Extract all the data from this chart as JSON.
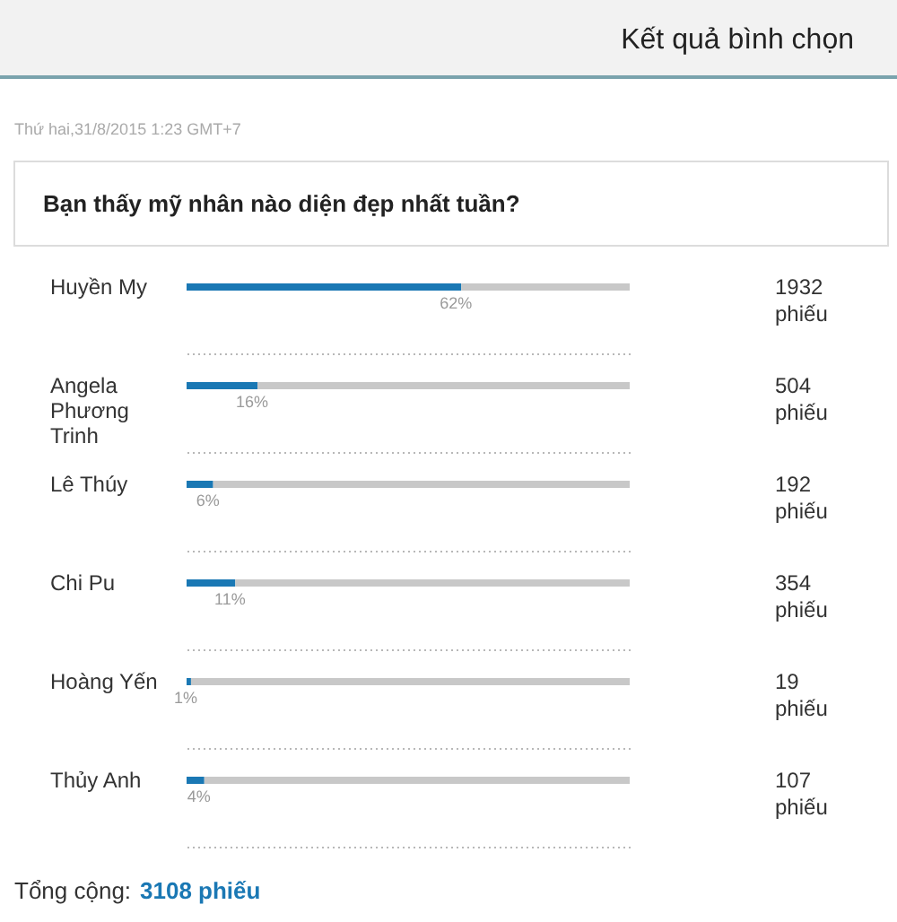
{
  "chart_data": {
    "type": "bar",
    "orientation": "horizontal",
    "stacked": true,
    "title": "Kết quả bình chọn",
    "subtitle": "Bạn thấy mỹ nhân nào diện đẹp nhất tuần?",
    "categories": [
      "Huyền My",
      "Angela Phương Trinh",
      "Lê Thúy",
      "Chi Pu",
      "Hoàng Yến",
      "Thủy Anh"
    ],
    "series": [
      {
        "color": "#1a78b4",
        "values": [
          62,
          16,
          6,
          11,
          1,
          4
        ],
        "value_labels": [
          "62%",
          "16%",
          "6%",
          "11%",
          "1%",
          "4%"
        ]
      },
      {
        "color": "#c8c8c8",
        "values": [
          38,
          84,
          94,
          89,
          99,
          96
        ]
      }
    ],
    "tick_labels": "y",
    "grid": "y",
    "annotations": [
      "Thứ hai,31/8/2015 1:23 GMT+7",
      "1932 phiếu",
      "504 phiếu",
      "192 phiếu",
      "354 phiếu",
      "19 phiếu",
      "107 phiếu",
      "Tổng cộng:",
      "3108 phiếu"
    ]
  }
}
